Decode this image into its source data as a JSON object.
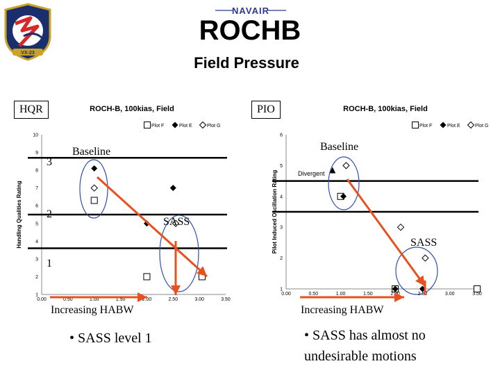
{
  "header": {
    "title": "ROCHB",
    "subtitle": "Field Pressure",
    "brand": "NAVAIR",
    "squadron_logo_text": "VX-23"
  },
  "colors": {
    "arrow": "#e8501e",
    "data_marker": "#000000",
    "circle": "#2f4fa8",
    "level_line": "#000000"
  },
  "left_panel": {
    "label": "HQR",
    "annotations": {
      "level_3": "3",
      "level_2": "2",
      "level_1": "1",
      "baseline": "Baseline",
      "sass": "SASS",
      "increasing": "Increasing HABW"
    },
    "bullet": "• SASS level 1"
  },
  "right_panel": {
    "label": "PIO",
    "annotations": {
      "baseline": "Baseline",
      "sass": "SASS",
      "divergent": "Divergent",
      "increasing": "Increasing HABW"
    },
    "bullet": "• SASS has almost no undesirable motions"
  },
  "chart_data": [
    {
      "type": "scatter",
      "title": "ROCH-B, 100kias, Field",
      "ylabel": "Handling Qualities Rating",
      "xlim": [
        0,
        3.5
      ],
      "ylim": [
        1,
        10
      ],
      "xticks": [
        "0.00",
        "0.50",
        "1.00",
        "1.50",
        "2.00",
        "2.50",
        "3.00",
        "3.50"
      ],
      "yticks": [
        "1",
        "2",
        "3",
        "4",
        "5",
        "6",
        "7",
        "8",
        "9",
        "10"
      ],
      "legend": [
        "Plot F",
        "Plot E",
        "Plot G"
      ],
      "legend_position": "top-right",
      "series": [
        {
          "name": "Plot F",
          "marker": "open-square",
          "points": [
            [
              1.0,
              6.3
            ],
            [
              2.0,
              2.0
            ],
            [
              3.05,
              2.0
            ]
          ]
        },
        {
          "name": "Plot E",
          "marker": "filled-diamond",
          "points": [
            [
              1.0,
              8.1
            ],
            [
              2.5,
              7.0
            ],
            [
              2.0,
              5.0
            ]
          ]
        },
        {
          "name": "Plot G",
          "marker": "open-diamond",
          "points": [
            [
              1.0,
              7.0
            ],
            [
              2.55,
              5.0
            ]
          ]
        }
      ],
      "level_lines": [
        8.7,
        5.5,
        3.6
      ]
    },
    {
      "type": "scatter",
      "title": "ROCH-B, 100kias, Field",
      "ylabel": "Pilot Induced Oscillation Rating",
      "xlim": [
        0,
        3.5
      ],
      "ylim": [
        1,
        6
      ],
      "xticks": [
        "0.00",
        "0.50",
        "1.00",
        "1.50",
        "2.00",
        "2.50",
        "3.00",
        "3.50"
      ],
      "yticks": [
        "1",
        "2",
        "3",
        "4",
        "5",
        "6"
      ],
      "legend": [
        "Plot F",
        "Plot E",
        "Plot G"
      ],
      "legend_position": "top-right",
      "series": [
        {
          "name": "Plot F",
          "marker": "open-square",
          "points": [
            [
              1.0,
              4.0
            ],
            [
              2.0,
              1.0
            ],
            [
              3.5,
              1.0
            ]
          ]
        },
        {
          "name": "Plot E",
          "marker": "filled-diamond",
          "points": [
            [
              1.05,
              4.0
            ],
            [
              2.0,
              1.0
            ],
            [
              2.5,
              1.0
            ]
          ]
        },
        {
          "name": "Plot G",
          "marker": "open-diamond",
          "points": [
            [
              1.1,
              5.0
            ],
            [
              2.1,
              3.0
            ],
            [
              2.55,
              2.0
            ]
          ]
        },
        {
          "name": "Divergent",
          "marker": "filled-triangle",
          "points": [
            [
              0.85,
              4.85
            ]
          ]
        }
      ],
      "level_lines": [
        4.5,
        3.5
      ]
    }
  ]
}
